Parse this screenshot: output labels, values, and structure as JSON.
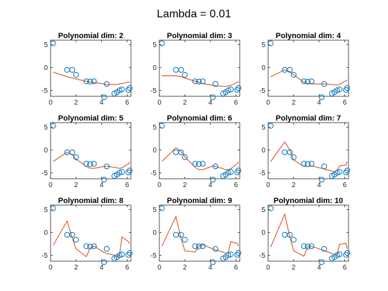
{
  "figure": {
    "title": "Lambda = 0.01"
  },
  "colors": {
    "data": "#0072BD",
    "fit": "#D95319"
  },
  "chart_data": {
    "type": "scatter",
    "suptitle": "Lambda = 0.01",
    "grid": false,
    "xlim": [
      0,
      6.3
    ],
    "ylim": [
      -6.3,
      6
    ],
    "xticks": [
      0,
      2,
      4,
      6
    ],
    "yticks": [
      -5,
      0,
      5
    ],
    "data_points": {
      "x": [
        0.2,
        1.3,
        1.7,
        2.0,
        2.8,
        3.1,
        3.4,
        4.2,
        4.4,
        5.0,
        5.2,
        5.4,
        5.6,
        6.1,
        6.2
      ],
      "y": [
        5.3,
        -0.5,
        -0.5,
        -1.6,
        -3.0,
        -3.1,
        -3.0,
        -6.5,
        -3.6,
        -5.7,
        -5.4,
        -5.0,
        -4.8,
        -4.9,
        -4.5
      ]
    },
    "panels": [
      {
        "title": "Polynomial dim: 2",
        "fit": {
          "x": [
            0.2,
            1.3,
            1.7,
            2.0,
            2.8,
            3.1,
            3.4,
            4.2,
            4.4,
            5.0,
            5.2,
            5.4,
            5.6,
            6.1,
            6.2
          ],
          "y": [
            -1.0,
            -2.0,
            -2.3,
            -2.5,
            -3.0,
            -3.2,
            -3.3,
            -3.6,
            -3.7,
            -3.7,
            -3.7,
            -3.6,
            -3.5,
            -3.2,
            -3.1
          ]
        }
      },
      {
        "title": "Polynomial dim: 3",
        "fit": {
          "x": [
            0.2,
            1.3,
            1.7,
            2.0,
            2.8,
            3.1,
            3.4,
            4.2,
            4.4,
            5.0,
            5.2,
            5.4,
            5.6,
            6.1,
            6.2
          ],
          "y": [
            -1.8,
            -1.8,
            -2.0,
            -2.3,
            -3.0,
            -3.3,
            -3.5,
            -3.9,
            -4.0,
            -4.1,
            -4.1,
            -4.0,
            -3.9,
            -3.3,
            -3.0
          ]
        }
      },
      {
        "title": "Polynomial dim: 4",
        "fit": {
          "x": [
            0.2,
            1.3,
            1.7,
            2.0,
            2.8,
            3.1,
            3.4,
            4.2,
            4.4,
            5.0,
            5.2,
            5.4,
            5.6,
            6.1,
            6.2
          ],
          "y": [
            -2.0,
            -0.5,
            -0.9,
            -1.6,
            -3.2,
            -3.5,
            -3.6,
            -3.6,
            -3.6,
            -3.7,
            -3.8,
            -3.8,
            -3.7,
            -2.9,
            -2.7
          ]
        }
      },
      {
        "title": "Polynomial dim: 5",
        "fit": {
          "x": [
            0.2,
            1.3,
            1.7,
            2.0,
            2.8,
            3.1,
            3.4,
            4.2,
            4.4,
            5.0,
            5.2,
            5.4,
            5.6,
            6.1,
            6.2
          ],
          "y": [
            -2.5,
            -0.5,
            -1.0,
            -2.0,
            -3.6,
            -4.0,
            -4.0,
            -3.6,
            -3.6,
            -3.8,
            -3.9,
            -4.0,
            -3.9,
            -3.0,
            -2.7
          ]
        }
      },
      {
        "title": "Polynomial dim: 6",
        "fit": {
          "x": [
            0.2,
            1.3,
            1.7,
            2.0,
            2.8,
            3.1,
            3.4,
            4.2,
            4.4,
            5.0,
            5.2,
            5.4,
            5.6,
            6.1,
            6.2
          ],
          "y": [
            -2.5,
            0.5,
            -0.3,
            -1.5,
            -3.8,
            -4.3,
            -4.3,
            -3.5,
            -3.6,
            -4.1,
            -4.3,
            -4.3,
            -4.1,
            -3.0,
            -2.6
          ]
        }
      },
      {
        "title": "Polynomial dim: 7",
        "fit": {
          "x": [
            0.2,
            1.3,
            1.7,
            2.0,
            2.8,
            3.1,
            3.4,
            4.2,
            4.4,
            5.0,
            5.2,
            5.4,
            5.6,
            6.1,
            6.2
          ],
          "y": [
            -2.5,
            1.8,
            0.0,
            -2.2,
            -3.6,
            -3.6,
            -3.5,
            -4.0,
            -4.2,
            -4.6,
            -4.8,
            -4.4,
            -3.5,
            -3.3,
            -2.5
          ]
        }
      },
      {
        "title": "Polynomial dim: 8",
        "fit": {
          "x": [
            0.2,
            1.3,
            1.7,
            2.0,
            2.8,
            3.1,
            3.4,
            4.2,
            4.4,
            5.0,
            5.2,
            5.4,
            5.6,
            6.1,
            6.2
          ],
          "y": [
            -2.8,
            2.5,
            -1.2,
            -3.6,
            -5.3,
            -3.4,
            -3.0,
            -4.4,
            -4.6,
            -5.0,
            -5.5,
            -4.8,
            -1.0,
            -2.0,
            -2.5
          ]
        }
      },
      {
        "title": "Polynomial dim: 9",
        "fit": {
          "x": [
            0.2,
            1.3,
            1.7,
            2.0,
            2.8,
            3.1,
            3.4,
            4.2,
            4.4,
            5.0,
            5.2,
            5.4,
            5.6,
            6.1,
            6.2
          ],
          "y": [
            -3.0,
            3.5,
            -1.3,
            -4.0,
            -4.3,
            -3.0,
            -2.7,
            -3.6,
            -3.8,
            -4.3,
            -4.6,
            -4.3,
            -2.0,
            -2.4,
            -3.0
          ]
        }
      },
      {
        "title": "Polynomial dim: 10",
        "fit": {
          "x": [
            0.2,
            1.3,
            1.7,
            2.0,
            2.8,
            3.1,
            3.4,
            4.2,
            4.4,
            5.0,
            5.2,
            5.4,
            5.6,
            6.1,
            6.2
          ],
          "y": [
            -3.2,
            4.0,
            -1.0,
            -4.0,
            -5.2,
            -3.2,
            -3.0,
            -3.8,
            -4.0,
            -4.6,
            -4.9,
            -4.8,
            -2.6,
            -2.4,
            -3.6
          ]
        }
      }
    ]
  }
}
